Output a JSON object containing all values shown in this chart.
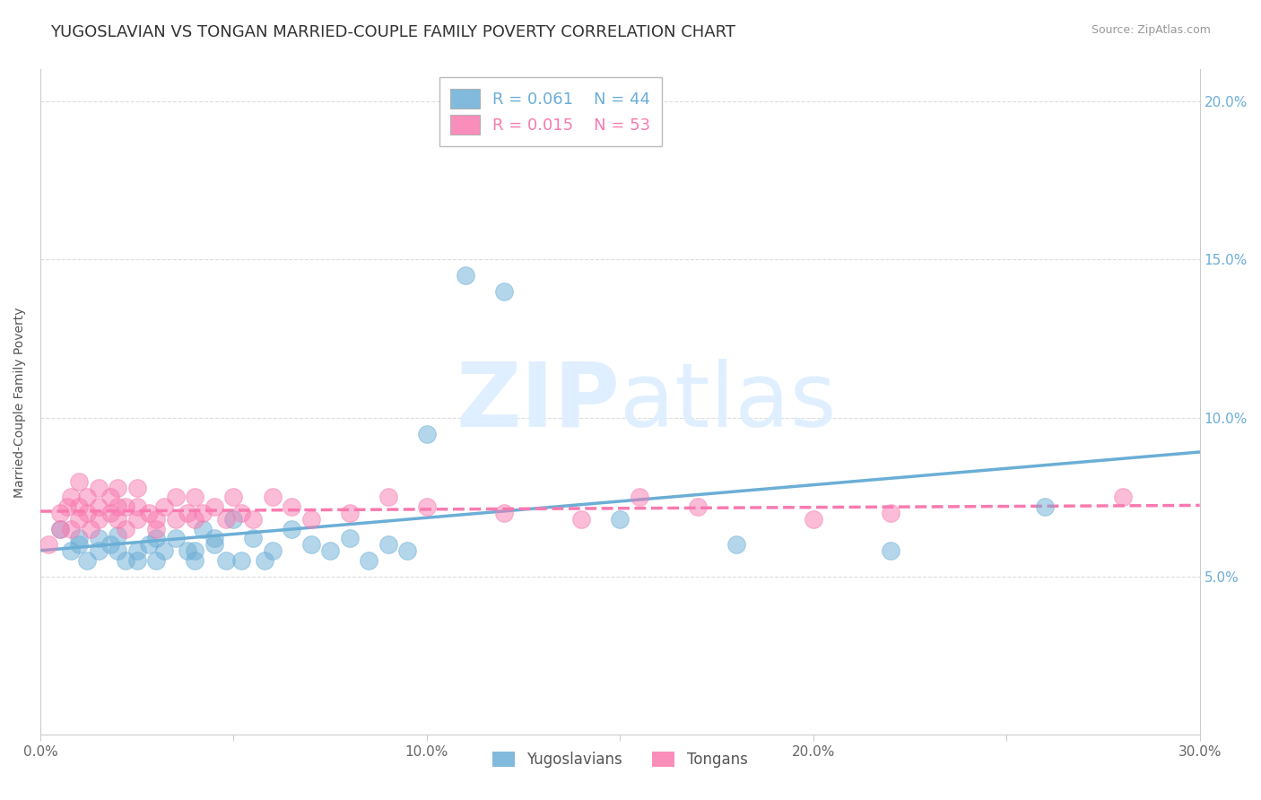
{
  "title": "YUGOSLAVIAN VS TONGAN MARRIED-COUPLE FAMILY POVERTY CORRELATION CHART",
  "source": "Source: ZipAtlas.com",
  "ylabel": "Married-Couple Family Poverty",
  "xlim": [
    0.0,
    0.3
  ],
  "ylim": [
    0.0,
    0.21
  ],
  "yticks": [
    0.05,
    0.1,
    0.15,
    0.2
  ],
  "ytick_labels": [
    "5.0%",
    "10.0%",
    "15.0%",
    "20.0%"
  ],
  "xticks": [
    0.0,
    0.05,
    0.1,
    0.15,
    0.2,
    0.25,
    0.3
  ],
  "xtick_labels": [
    "0.0%",
    "",
    "10.0%",
    "",
    "20.0%",
    "",
    "30.0%"
  ],
  "legend_entries": [
    {
      "label": "Yugoslavians",
      "color": "#6baed6",
      "R": "0.061",
      "N": "44"
    },
    {
      "label": "Tongans",
      "color": "#f87ab0",
      "R": "0.015",
      "N": "53"
    }
  ],
  "blue_color": "#6baed6",
  "pink_color": "#f87ab0",
  "yug_x": [
    0.005,
    0.008,
    0.01,
    0.01,
    0.012,
    0.015,
    0.015,
    0.018,
    0.02,
    0.02,
    0.022,
    0.025,
    0.025,
    0.028,
    0.03,
    0.03,
    0.032,
    0.035,
    0.038,
    0.04,
    0.04,
    0.042,
    0.045,
    0.045,
    0.048,
    0.05,
    0.052,
    0.055,
    0.058,
    0.06,
    0.065,
    0.07,
    0.075,
    0.08,
    0.085,
    0.09,
    0.095,
    0.1,
    0.11,
    0.12,
    0.15,
    0.18,
    0.22,
    0.26
  ],
  "yug_y": [
    0.065,
    0.058,
    0.06,
    0.062,
    0.055,
    0.062,
    0.058,
    0.06,
    0.058,
    0.063,
    0.055,
    0.055,
    0.058,
    0.06,
    0.062,
    0.055,
    0.058,
    0.062,
    0.058,
    0.055,
    0.058,
    0.065,
    0.06,
    0.062,
    0.055,
    0.068,
    0.055,
    0.062,
    0.055,
    0.058,
    0.065,
    0.06,
    0.058,
    0.062,
    0.055,
    0.06,
    0.058,
    0.095,
    0.145,
    0.14,
    0.068,
    0.06,
    0.058,
    0.072
  ],
  "ton_x": [
    0.002,
    0.005,
    0.005,
    0.007,
    0.008,
    0.008,
    0.01,
    0.01,
    0.01,
    0.012,
    0.012,
    0.013,
    0.015,
    0.015,
    0.015,
    0.018,
    0.018,
    0.02,
    0.02,
    0.02,
    0.022,
    0.022,
    0.025,
    0.025,
    0.025,
    0.028,
    0.03,
    0.03,
    0.032,
    0.035,
    0.035,
    0.038,
    0.04,
    0.04,
    0.042,
    0.045,
    0.048,
    0.05,
    0.052,
    0.055,
    0.06,
    0.065,
    0.07,
    0.08,
    0.09,
    0.1,
    0.12,
    0.14,
    0.155,
    0.17,
    0.2,
    0.22,
    0.28
  ],
  "ton_y": [
    0.06,
    0.065,
    0.07,
    0.072,
    0.065,
    0.075,
    0.068,
    0.072,
    0.08,
    0.07,
    0.075,
    0.065,
    0.068,
    0.072,
    0.078,
    0.07,
    0.075,
    0.068,
    0.072,
    0.078,
    0.065,
    0.072,
    0.068,
    0.072,
    0.078,
    0.07,
    0.065,
    0.068,
    0.072,
    0.068,
    0.075,
    0.07,
    0.068,
    0.075,
    0.07,
    0.072,
    0.068,
    0.075,
    0.07,
    0.068,
    0.075,
    0.072,
    0.068,
    0.07,
    0.075,
    0.072,
    0.07,
    0.068,
    0.075,
    0.072,
    0.068,
    0.07,
    0.075
  ],
  "title_fontsize": 13,
  "axis_label_fontsize": 10,
  "tick_fontsize": 11,
  "source_fontsize": 9
}
